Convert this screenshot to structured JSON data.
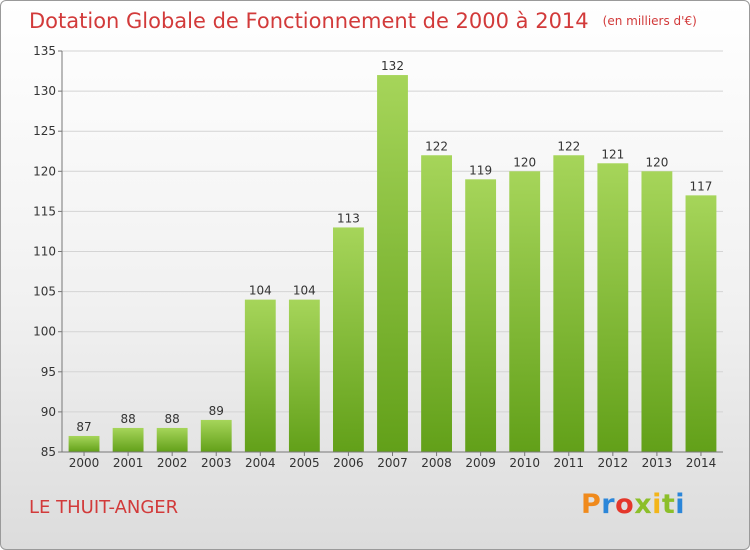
{
  "header": {
    "title": "Dotation Globale de Fonctionnement de 2000 à 2014",
    "unit": "(en milliers d'€)"
  },
  "commune": "LE THUIT-ANGER",
  "brand": {
    "logo": "Proxiti",
    "colors": [
      "#f08a1c",
      "#2b86d9",
      "#e4372b",
      "#8cbf2a",
      "#f3b51a"
    ]
  },
  "chart_data": {
    "type": "bar",
    "title": "Dotation Globale de Fonctionnement de 2000 à 2014",
    "subtitle": "(en milliers d'€)",
    "xlabel": "",
    "ylabel": "",
    "categories": [
      "2000",
      "2001",
      "2002",
      "2003",
      "2004",
      "2005",
      "2006",
      "2007",
      "2008",
      "2009",
      "2010",
      "2011",
      "2012",
      "2013",
      "2014"
    ],
    "values": [
      87,
      88,
      88,
      89,
      104,
      104,
      113,
      132,
      122,
      119,
      120,
      122,
      121,
      120,
      117
    ],
    "ylim": [
      85,
      135
    ],
    "yticks": [
      85,
      90,
      95,
      100,
      105,
      110,
      115,
      120,
      125,
      130,
      135
    ],
    "grid": true,
    "bar_color_top": "#a6d55a",
    "bar_color_bottom": "#62a019"
  }
}
